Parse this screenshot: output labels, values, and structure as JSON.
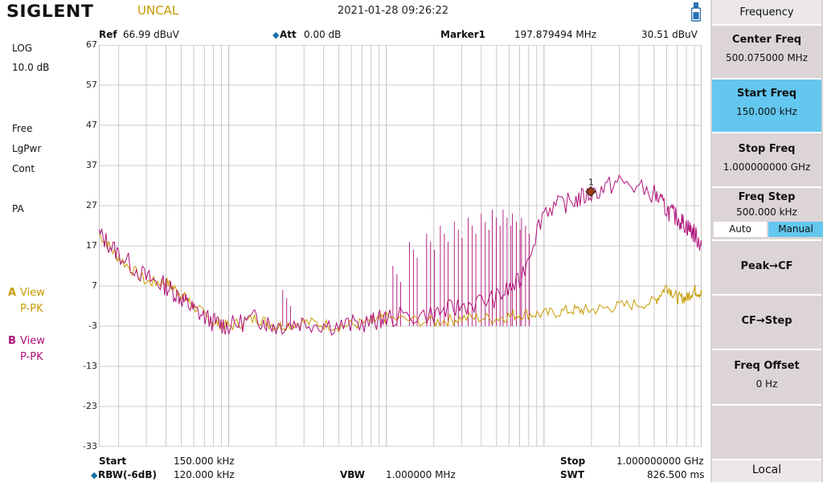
{
  "header": {
    "brand": "SIGLENT",
    "status": "UNCAL",
    "datetime": "2021-01-28   09:26:22"
  },
  "left": {
    "scale_mode": "LOG",
    "scale_div": "10.0 dB",
    "mode": "Free",
    "detector": "LgPwr",
    "sweep": "Cont",
    "preamp": "PA",
    "traceA_letter": "A",
    "traceA_view": "View",
    "traceA_det": "P-PK",
    "traceB_letter": "B",
    "traceB_view": "View",
    "traceB_det": "P-PK"
  },
  "info": {
    "ref_label": "Ref",
    "ref_value": "66.99 dBuV",
    "att_label": "Att",
    "att_value": "0.00 dB",
    "marker_label": "Marker1",
    "marker_freq": "197.879494 MHz",
    "marker_level": "30.51 dBuV"
  },
  "bottom": {
    "start_label": "Start",
    "start_value": "150.000 kHz",
    "rbw_label": "RBW(-6dB)",
    "rbw_value": "120.000 kHz",
    "vbw_label": "VBW",
    "vbw_value": "1.000000 MHz",
    "stop_label": "Stop",
    "stop_value": "1.000000000 GHz",
    "swt_label": "SWT",
    "swt_value": "826.500 ms"
  },
  "softkeys": {
    "menu_title": "Frequency",
    "center_label": "Center Freq",
    "center_value": "500.075000 MHz",
    "start_label": "Start Freq",
    "start_value": "150.000 kHz",
    "stop_label": "Stop Freq",
    "stop_value": "1.000000000 GHz",
    "step_label": "Freq Step",
    "step_value": "500.000 kHz",
    "auto_label": "Auto",
    "manual_label": "Manual",
    "peak_label": "Peak→CF",
    "cfstep_label": "CF→Step",
    "offset_label": "Freq Offset",
    "offset_value": "0 Hz",
    "local_label": "Local"
  },
  "colors": {
    "traceA": "#c89a00",
    "traceB": "#b0127a",
    "active_key": "#63c7ef",
    "grid": "#bcbcbc"
  },
  "chart_data": {
    "type": "line",
    "x_scale": "log",
    "x_range_hz": [
      150000,
      1000000000
    ],
    "ylim": [
      -33,
      67
    ],
    "y_ticks": [
      67,
      57,
      47,
      37,
      27,
      17,
      7,
      -3,
      -13,
      -23,
      -33
    ],
    "ylabel_unit": "dBuV",
    "marker": {
      "label": "1",
      "x_hz": 197879494,
      "y": 30.51
    },
    "series": [
      {
        "name": "A",
        "color": "#c89a00",
        "x_hz": [
          150000,
          200000,
          300000,
          400000,
          500000,
          600000,
          800000,
          1000000,
          1500000,
          2000000,
          3000000,
          5000000,
          8000000,
          10000000,
          20000000,
          30000000,
          50000000,
          70000000,
          100000000,
          150000000,
          200000000,
          300000000,
          500000000,
          600000000,
          700000000,
          800000000,
          900000000,
          1000000000
        ],
        "values": [
          20,
          14,
          8,
          8,
          5,
          2,
          -2,
          -3,
          -1,
          -3,
          -2,
          -3,
          -2,
          -1,
          -2,
          -1,
          -1,
          0,
          0,
          1,
          1,
          2,
          3,
          7,
          4,
          4,
          6,
          5
        ]
      },
      {
        "name": "B",
        "color": "#b0127a",
        "x_hz": [
          150000,
          200000,
          300000,
          400000,
          500000,
          600000,
          800000,
          1000000,
          1500000,
          2000000,
          3000000,
          5000000,
          8000000,
          10000000,
          20000000,
          30000000,
          50000000,
          70000000,
          100000000,
          150000000,
          200000000,
          300000000,
          500000000,
          600000000,
          700000000,
          800000000,
          900000000,
          1000000000
        ],
        "values": [
          20,
          15,
          9,
          7,
          4,
          1,
          -2,
          -3,
          -1,
          -3,
          -2,
          -3,
          -2,
          -1,
          0,
          2,
          4,
          8,
          26,
          28,
          30,
          33,
          30,
          26,
          24,
          22,
          20,
          17
        ]
      }
    ],
    "spurs_B": [
      {
        "x_hz": 2200000,
        "y": 6
      },
      {
        "x_hz": 11000000,
        "y": 12
      },
      {
        "x_hz": 14000000,
        "y": 18
      },
      {
        "x_hz": 18000000,
        "y": 20
      },
      {
        "x_hz": 22000000,
        "y": 22
      },
      {
        "x_hz": 27000000,
        "y": 23
      },
      {
        "x_hz": 33000000,
        "y": 24
      },
      {
        "x_hz": 40000000,
        "y": 25
      },
      {
        "x_hz": 47000000,
        "y": 26
      },
      {
        "x_hz": 55000000,
        "y": 26
      },
      {
        "x_hz": 63000000,
        "y": 25
      },
      {
        "x_hz": 72000000,
        "y": 24
      }
    ]
  }
}
